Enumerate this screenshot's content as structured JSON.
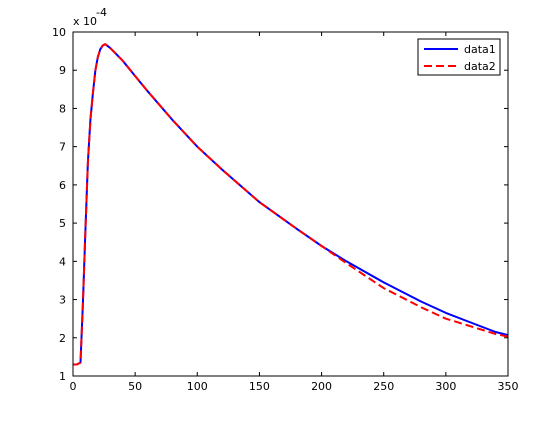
{
  "chart_data": {
    "type": "line",
    "title": "",
    "xlabel": "",
    "ylabel": "",
    "xlim": [
      0,
      350
    ],
    "ylim": [
      1,
      10
    ],
    "y_multiplier_label": {
      "base": "x 10",
      "exponent": "-4"
    },
    "xticks": [
      0,
      50,
      100,
      150,
      200,
      250,
      300,
      350
    ],
    "yticks": [
      1,
      2,
      3,
      4,
      5,
      6,
      7,
      8,
      9,
      10
    ],
    "grid": false,
    "legend_position": "top-right",
    "series": [
      {
        "name": "data1",
        "color": "#0000ff",
        "dash": "solid",
        "x": [
          0,
          3,
          6,
          8,
          10,
          12,
          14,
          16,
          18,
          20,
          22,
          24,
          26,
          30,
          40,
          50,
          60,
          80,
          100,
          120,
          150,
          180,
          200,
          220,
          250,
          280,
          300,
          320,
          340,
          350
        ],
        "y": [
          1.3,
          1.3,
          1.35,
          2.9,
          4.8,
          6.6,
          7.7,
          8.4,
          9.0,
          9.35,
          9.55,
          9.65,
          9.68,
          9.58,
          9.25,
          8.85,
          8.45,
          7.7,
          7.0,
          6.4,
          5.55,
          4.85,
          4.4,
          4.0,
          3.45,
          2.95,
          2.65,
          2.4,
          2.15,
          2.07
        ]
      },
      {
        "name": "data2",
        "color": "#ff0000",
        "dash": "dashed",
        "x": [
          0,
          3,
          6,
          8,
          10,
          12,
          14,
          16,
          18,
          20,
          22,
          24,
          26,
          30,
          40,
          50,
          60,
          80,
          100,
          120,
          150,
          180,
          200,
          220,
          250,
          280,
          300,
          320,
          340,
          350
        ],
        "y": [
          1.3,
          1.3,
          1.35,
          2.9,
          4.8,
          6.6,
          7.7,
          8.4,
          9.0,
          9.35,
          9.55,
          9.65,
          9.68,
          9.58,
          9.25,
          8.85,
          8.45,
          7.7,
          7.0,
          6.4,
          5.55,
          4.85,
          4.4,
          3.95,
          3.3,
          2.8,
          2.5,
          2.3,
          2.1,
          2.03
        ]
      }
    ]
  }
}
